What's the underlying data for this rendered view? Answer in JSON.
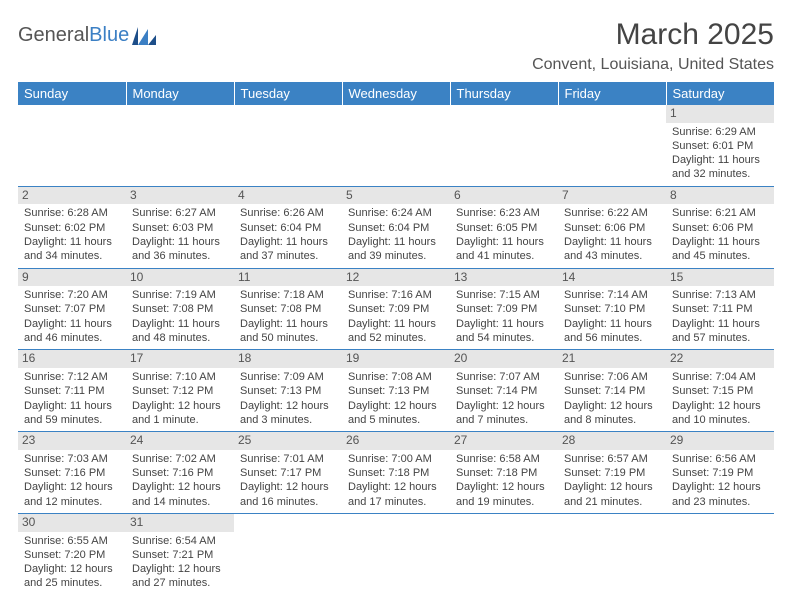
{
  "brand": {
    "text1": "General",
    "text2": "Blue"
  },
  "title": "March 2025",
  "location": "Convent, Louisiana, United States",
  "colors": {
    "header_bg": "#3b82c4",
    "header_text": "#ffffff",
    "daynum_bg": "#e6e6e6",
    "cell_border": "#3b82c4",
    "body_text": "#444444",
    "logo_blue": "#3b7fc4"
  },
  "font": {
    "family": "Arial",
    "title_size_pt": 22,
    "location_size_pt": 12,
    "header_size_pt": 10,
    "cell_size_pt": 8
  },
  "daysOfWeek": [
    "Sunday",
    "Monday",
    "Tuesday",
    "Wednesday",
    "Thursday",
    "Friday",
    "Saturday"
  ],
  "weeks": [
    [
      {
        "num": "",
        "sunrise": "",
        "sunset": "",
        "daylight": ""
      },
      {
        "num": "",
        "sunrise": "",
        "sunset": "",
        "daylight": ""
      },
      {
        "num": "",
        "sunrise": "",
        "sunset": "",
        "daylight": ""
      },
      {
        "num": "",
        "sunrise": "",
        "sunset": "",
        "daylight": ""
      },
      {
        "num": "",
        "sunrise": "",
        "sunset": "",
        "daylight": ""
      },
      {
        "num": "",
        "sunrise": "",
        "sunset": "",
        "daylight": ""
      },
      {
        "num": "1",
        "sunrise": "Sunrise: 6:29 AM",
        "sunset": "Sunset: 6:01 PM",
        "daylight": "Daylight: 11 hours and 32 minutes."
      }
    ],
    [
      {
        "num": "2",
        "sunrise": "Sunrise: 6:28 AM",
        "sunset": "Sunset: 6:02 PM",
        "daylight": "Daylight: 11 hours and 34 minutes."
      },
      {
        "num": "3",
        "sunrise": "Sunrise: 6:27 AM",
        "sunset": "Sunset: 6:03 PM",
        "daylight": "Daylight: 11 hours and 36 minutes."
      },
      {
        "num": "4",
        "sunrise": "Sunrise: 6:26 AM",
        "sunset": "Sunset: 6:04 PM",
        "daylight": "Daylight: 11 hours and 37 minutes."
      },
      {
        "num": "5",
        "sunrise": "Sunrise: 6:24 AM",
        "sunset": "Sunset: 6:04 PM",
        "daylight": "Daylight: 11 hours and 39 minutes."
      },
      {
        "num": "6",
        "sunrise": "Sunrise: 6:23 AM",
        "sunset": "Sunset: 6:05 PM",
        "daylight": "Daylight: 11 hours and 41 minutes."
      },
      {
        "num": "7",
        "sunrise": "Sunrise: 6:22 AM",
        "sunset": "Sunset: 6:06 PM",
        "daylight": "Daylight: 11 hours and 43 minutes."
      },
      {
        "num": "8",
        "sunrise": "Sunrise: 6:21 AM",
        "sunset": "Sunset: 6:06 PM",
        "daylight": "Daylight: 11 hours and 45 minutes."
      }
    ],
    [
      {
        "num": "9",
        "sunrise": "Sunrise: 7:20 AM",
        "sunset": "Sunset: 7:07 PM",
        "daylight": "Daylight: 11 hours and 46 minutes."
      },
      {
        "num": "10",
        "sunrise": "Sunrise: 7:19 AM",
        "sunset": "Sunset: 7:08 PM",
        "daylight": "Daylight: 11 hours and 48 minutes."
      },
      {
        "num": "11",
        "sunrise": "Sunrise: 7:18 AM",
        "sunset": "Sunset: 7:08 PM",
        "daylight": "Daylight: 11 hours and 50 minutes."
      },
      {
        "num": "12",
        "sunrise": "Sunrise: 7:16 AM",
        "sunset": "Sunset: 7:09 PM",
        "daylight": "Daylight: 11 hours and 52 minutes."
      },
      {
        "num": "13",
        "sunrise": "Sunrise: 7:15 AM",
        "sunset": "Sunset: 7:09 PM",
        "daylight": "Daylight: 11 hours and 54 minutes."
      },
      {
        "num": "14",
        "sunrise": "Sunrise: 7:14 AM",
        "sunset": "Sunset: 7:10 PM",
        "daylight": "Daylight: 11 hours and 56 minutes."
      },
      {
        "num": "15",
        "sunrise": "Sunrise: 7:13 AM",
        "sunset": "Sunset: 7:11 PM",
        "daylight": "Daylight: 11 hours and 57 minutes."
      }
    ],
    [
      {
        "num": "16",
        "sunrise": "Sunrise: 7:12 AM",
        "sunset": "Sunset: 7:11 PM",
        "daylight": "Daylight: 11 hours and 59 minutes."
      },
      {
        "num": "17",
        "sunrise": "Sunrise: 7:10 AM",
        "sunset": "Sunset: 7:12 PM",
        "daylight": "Daylight: 12 hours and 1 minute."
      },
      {
        "num": "18",
        "sunrise": "Sunrise: 7:09 AM",
        "sunset": "Sunset: 7:13 PM",
        "daylight": "Daylight: 12 hours and 3 minutes."
      },
      {
        "num": "19",
        "sunrise": "Sunrise: 7:08 AM",
        "sunset": "Sunset: 7:13 PM",
        "daylight": "Daylight: 12 hours and 5 minutes."
      },
      {
        "num": "20",
        "sunrise": "Sunrise: 7:07 AM",
        "sunset": "Sunset: 7:14 PM",
        "daylight": "Daylight: 12 hours and 7 minutes."
      },
      {
        "num": "21",
        "sunrise": "Sunrise: 7:06 AM",
        "sunset": "Sunset: 7:14 PM",
        "daylight": "Daylight: 12 hours and 8 minutes."
      },
      {
        "num": "22",
        "sunrise": "Sunrise: 7:04 AM",
        "sunset": "Sunset: 7:15 PM",
        "daylight": "Daylight: 12 hours and 10 minutes."
      }
    ],
    [
      {
        "num": "23",
        "sunrise": "Sunrise: 7:03 AM",
        "sunset": "Sunset: 7:16 PM",
        "daylight": "Daylight: 12 hours and 12 minutes."
      },
      {
        "num": "24",
        "sunrise": "Sunrise: 7:02 AM",
        "sunset": "Sunset: 7:16 PM",
        "daylight": "Daylight: 12 hours and 14 minutes."
      },
      {
        "num": "25",
        "sunrise": "Sunrise: 7:01 AM",
        "sunset": "Sunset: 7:17 PM",
        "daylight": "Daylight: 12 hours and 16 minutes."
      },
      {
        "num": "26",
        "sunrise": "Sunrise: 7:00 AM",
        "sunset": "Sunset: 7:18 PM",
        "daylight": "Daylight: 12 hours and 17 minutes."
      },
      {
        "num": "27",
        "sunrise": "Sunrise: 6:58 AM",
        "sunset": "Sunset: 7:18 PM",
        "daylight": "Daylight: 12 hours and 19 minutes."
      },
      {
        "num": "28",
        "sunrise": "Sunrise: 6:57 AM",
        "sunset": "Sunset: 7:19 PM",
        "daylight": "Daylight: 12 hours and 21 minutes."
      },
      {
        "num": "29",
        "sunrise": "Sunrise: 6:56 AM",
        "sunset": "Sunset: 7:19 PM",
        "daylight": "Daylight: 12 hours and 23 minutes."
      }
    ],
    [
      {
        "num": "30",
        "sunrise": "Sunrise: 6:55 AM",
        "sunset": "Sunset: 7:20 PM",
        "daylight": "Daylight: 12 hours and 25 minutes."
      },
      {
        "num": "31",
        "sunrise": "Sunrise: 6:54 AM",
        "sunset": "Sunset: 7:21 PM",
        "daylight": "Daylight: 12 hours and 27 minutes."
      },
      {
        "num": "",
        "sunrise": "",
        "sunset": "",
        "daylight": ""
      },
      {
        "num": "",
        "sunrise": "",
        "sunset": "",
        "daylight": ""
      },
      {
        "num": "",
        "sunrise": "",
        "sunset": "",
        "daylight": ""
      },
      {
        "num": "",
        "sunrise": "",
        "sunset": "",
        "daylight": ""
      },
      {
        "num": "",
        "sunrise": "",
        "sunset": "",
        "daylight": ""
      }
    ]
  ]
}
